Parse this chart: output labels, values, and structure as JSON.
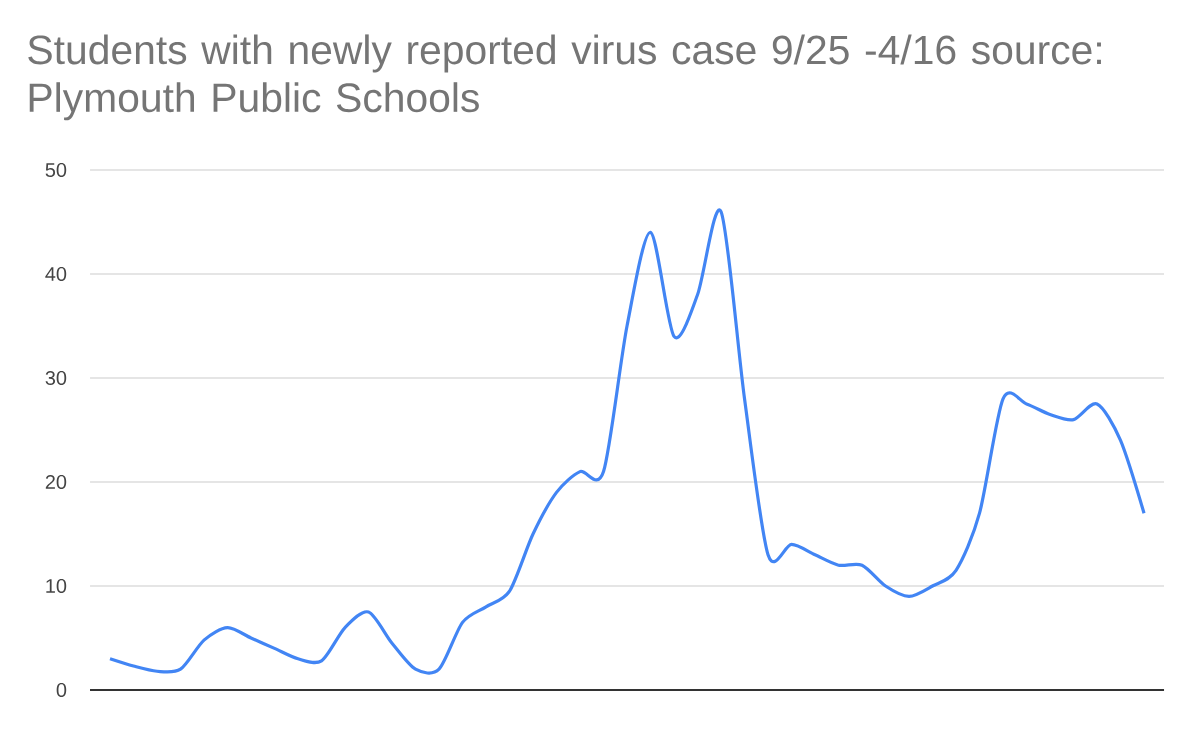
{
  "chart_data": {
    "type": "line",
    "title": "Students with newly reported virus case 9/25 -4/16 source: Plymouth Public Schools",
    "categories": [
      null,
      null,
      null,
      null,
      null,
      null,
      null,
      null,
      null,
      null,
      null,
      null,
      null,
      null,
      null,
      null,
      null,
      null,
      null,
      null,
      null,
      null,
      null,
      null,
      null,
      null,
      null,
      null,
      null,
      null,
      null,
      null,
      null,
      null,
      null,
      null,
      null,
      null,
      null,
      null,
      null,
      null,
      null,
      null,
      null
    ],
    "series": [
      {
        "color": "#4285f4",
        "values": [
          3,
          2.3,
          1.8,
          2,
          4.8,
          6,
          5,
          4,
          3,
          2.8,
          6,
          7.5,
          4.5,
          2,
          2,
          6.5,
          8,
          9.5,
          15,
          19,
          21,
          21,
          35,
          44,
          34,
          38,
          46,
          28,
          13,
          14,
          13,
          12,
          12,
          10,
          9,
          10,
          11.5,
          17,
          28,
          27.5,
          26.5,
          26,
          27.5,
          24,
          17
        ]
      }
    ],
    "ylim": [
      0,
      50
    ],
    "yticks": [
      0,
      10,
      20,
      30,
      40,
      50
    ],
    "grid": "y",
    "tick_labels": "y",
    "marker": "none",
    "line_style": "solid"
  }
}
